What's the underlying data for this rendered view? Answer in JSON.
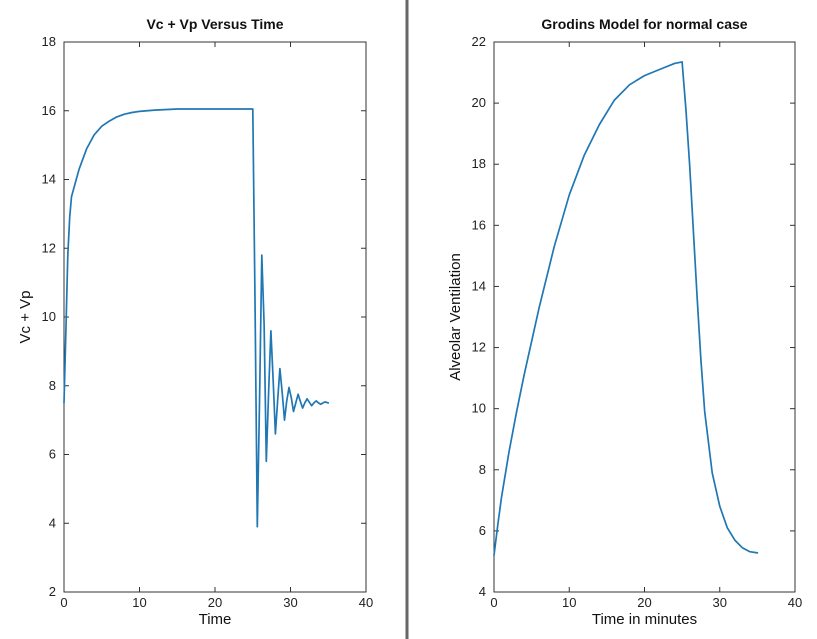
{
  "chart_data": [
    {
      "type": "line",
      "title": "Vc + Vp Versus Time",
      "xlabel": "Time",
      "ylabel": "Vc + Vp",
      "xlim": [
        0,
        40
      ],
      "ylim": [
        2,
        18
      ],
      "xticks": [
        0,
        10,
        20,
        30,
        40
      ],
      "yticks": [
        2,
        4,
        6,
        8,
        10,
        12,
        14,
        16,
        18
      ],
      "grid": false,
      "color": "#1f77b4",
      "series": [
        {
          "x": [
            0,
            0.25,
            0.5,
            0.75,
            1,
            1.5,
            2,
            3,
            4,
            5,
            6,
            7,
            8,
            9,
            10,
            12,
            15,
            18,
            20,
            22,
            24,
            25,
            25.3,
            25.6,
            25.9,
            26.2,
            26.5,
            26.8,
            27.1,
            27.4,
            27.7,
            28.0,
            28.3,
            28.6,
            28.9,
            29.2,
            29.5,
            29.8,
            30.1,
            30.4,
            30.7,
            31.0,
            31.3,
            31.6,
            31.9,
            32.2,
            32.5,
            32.8,
            33.1,
            33.4,
            33.7,
            34.0,
            34.3,
            34.6,
            35.0
          ],
          "y": [
            7.5,
            9.6,
            11.8,
            12.9,
            13.5,
            13.9,
            14.3,
            14.9,
            15.3,
            15.55,
            15.7,
            15.82,
            15.9,
            15.95,
            15.98,
            16.02,
            16.05,
            16.05,
            16.05,
            16.05,
            16.05,
            16.05,
            10.5,
            3.9,
            7.5,
            11.8,
            9.8,
            5.8,
            7.8,
            9.6,
            8.2,
            6.6,
            7.6,
            8.5,
            7.8,
            7.0,
            7.55,
            7.95,
            7.65,
            7.25,
            7.5,
            7.75,
            7.55,
            7.35,
            7.5,
            7.62,
            7.52,
            7.42,
            7.5,
            7.56,
            7.5,
            7.46,
            7.5,
            7.53,
            7.5
          ]
        }
      ]
    },
    {
      "type": "line",
      "title": "Grodins Model for normal case",
      "xlabel": "Time in minutes",
      "ylabel": "Alveolar Ventilation",
      "xlim": [
        0,
        40
      ],
      "ylim": [
        4,
        22
      ],
      "xticks": [
        0,
        10,
        20,
        30,
        40
      ],
      "yticks": [
        4,
        6,
        8,
        10,
        12,
        14,
        16,
        18,
        20,
        22
      ],
      "grid": false,
      "color": "#1f77b4",
      "series": [
        {
          "x": [
            0,
            0.5,
            1,
            2,
            3,
            4,
            5,
            6,
            8,
            10,
            12,
            14,
            16,
            18,
            20,
            22,
            24,
            25,
            25.5,
            26,
            26.5,
            27,
            27.5,
            28,
            29,
            30,
            31,
            32,
            33,
            34,
            35
          ],
          "y": [
            5.2,
            6.2,
            7.1,
            8.6,
            9.9,
            11.1,
            12.2,
            13.3,
            15.3,
            17.0,
            18.3,
            19.3,
            20.1,
            20.6,
            20.9,
            21.1,
            21.3,
            21.35,
            19.8,
            18.0,
            15.8,
            13.6,
            11.6,
            9.9,
            7.9,
            6.8,
            6.1,
            5.7,
            5.45,
            5.32,
            5.28
          ]
        }
      ]
    }
  ]
}
